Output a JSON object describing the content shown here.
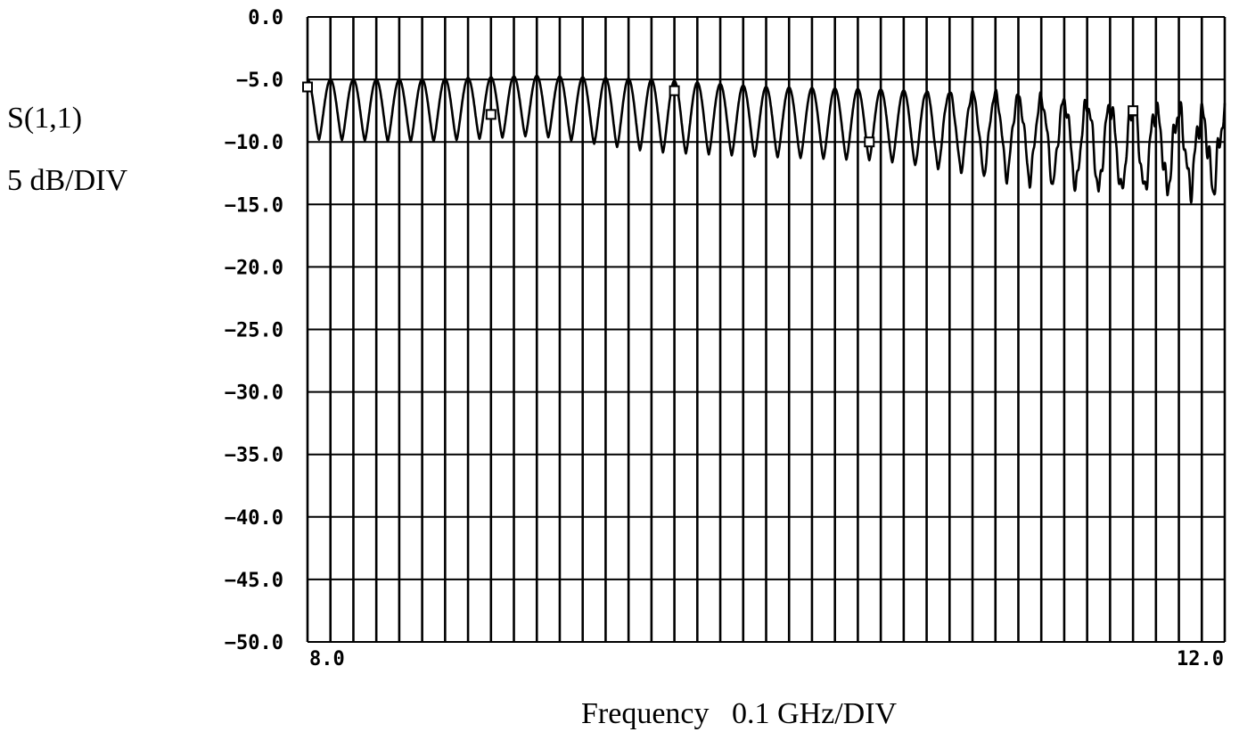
{
  "chart_data": {
    "type": "line",
    "ylabel": "S(1,1)",
    "yunits": "5 dB/DIV",
    "xlabel": "Frequency",
    "xunits": "0.1 GHz/DIV",
    "xlim": [
      8.0,
      12.0
    ],
    "ylim": [
      -50.0,
      0.0
    ],
    "x_divisions": 40,
    "y_divisions": 10,
    "x_tick_labels": [
      "8.0",
      "12.0"
    ],
    "y_tick_labels": [
      "0.0",
      "-5.0",
      "-10.0",
      "-15.0",
      "-20.0",
      "-25.0",
      "-30.0",
      "-35.0",
      "-40.0",
      "-45.0",
      "-50.0"
    ],
    "grid": true,
    "series": [
      {
        "color": "#000000",
        "envelope": {
          "x": [
            8.0,
            8.5,
            9.0,
            9.5,
            10.0,
            10.5,
            11.0,
            11.5,
            12.0
          ],
          "upper": [
            -5.0,
            -5.0,
            -4.7,
            -5.0,
            -5.6,
            -5.8,
            -6.2,
            -7.2,
            -8.0
          ],
          "lower": [
            -9.8,
            -10.0,
            -9.5,
            -10.8,
            -11.2,
            -11.5,
            -12.8,
            -14.2,
            -13.8
          ]
        },
        "ripple_period_ghz": 0.1
      }
    ],
    "markers": [
      {
        "x": 8.0,
        "y": -5.6
      },
      {
        "x": 8.8,
        "y": -7.8
      },
      {
        "x": 9.6,
        "y": -5.9
      },
      {
        "x": 10.45,
        "y": -10.0
      },
      {
        "x": 11.6,
        "y": -7.5
      }
    ]
  }
}
